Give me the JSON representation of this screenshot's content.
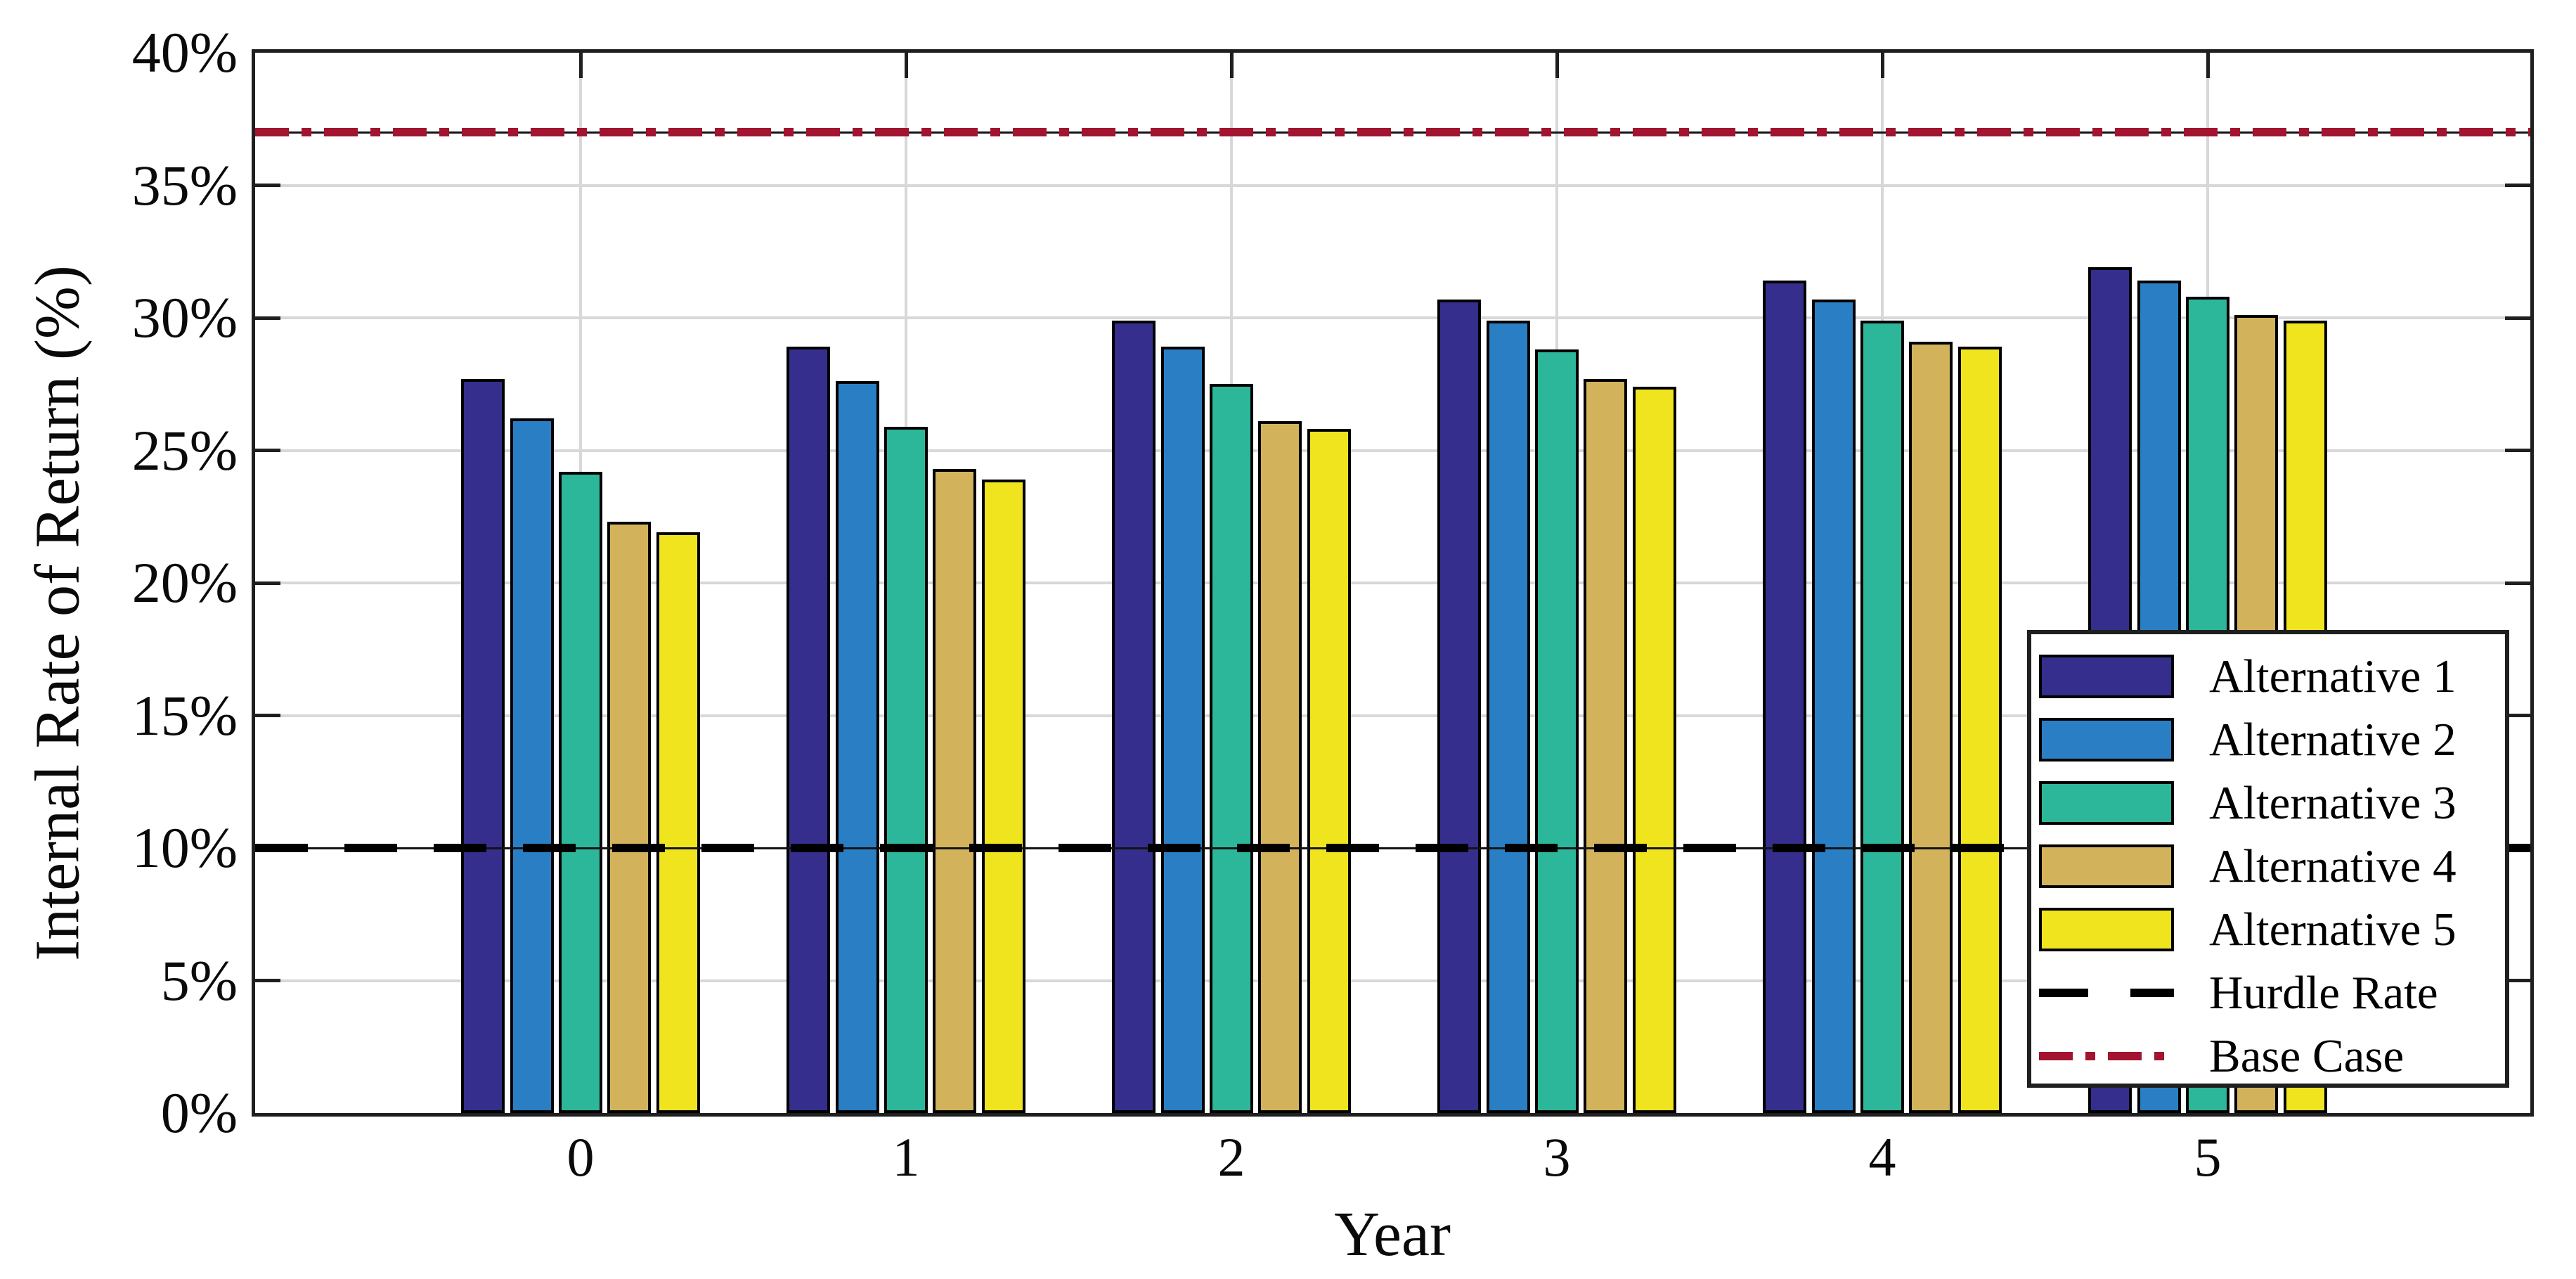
{
  "chart_data": {
    "type": "bar",
    "title": "",
    "xlabel": "Year",
    "ylabel": "Internal Rate of Return (%)",
    "categories": [
      "0",
      "1",
      "2",
      "3",
      "4",
      "5"
    ],
    "series": [
      {
        "name": "Alternative 1",
        "color": "#352E8C",
        "values": [
          27.7,
          28.9,
          29.9,
          30.7,
          31.4,
          31.9
        ]
      },
      {
        "name": "Alternative 2",
        "color": "#2A7FC4",
        "values": [
          26.2,
          27.6,
          28.9,
          29.9,
          30.7,
          31.4
        ]
      },
      {
        "name": "Alternative 3",
        "color": "#2DB79A",
        "values": [
          24.2,
          25.9,
          27.5,
          28.8,
          29.9,
          30.8
        ]
      },
      {
        "name": "Alternative 4",
        "color": "#D2B35C",
        "values": [
          22.3,
          24.3,
          26.1,
          27.7,
          29.1,
          30.1
        ]
      },
      {
        "name": "Alternative 5",
        "color": "#F0E41F",
        "values": [
          21.9,
          23.9,
          25.8,
          27.4,
          28.9,
          29.9
        ]
      }
    ],
    "reference_lines": [
      {
        "name": "Hurdle Rate",
        "value": 10,
        "style": "dashed",
        "color": "#000000"
      },
      {
        "name": "Base Case",
        "value": 37,
        "style": "dash-dot",
        "color": "#A2142F"
      }
    ],
    "ylim": [
      0,
      40
    ],
    "ytick_step": 5,
    "ytick_labels": [
      "0%",
      "5%",
      "10%",
      "15%",
      "20%",
      "25%",
      "30%",
      "35%",
      "40%"
    ],
    "grid": true,
    "legend_position": "lower right",
    "legend_entries": [
      "Alternative 1",
      "Alternative 2",
      "Alternative 3",
      "Alternative 4",
      "Alternative 5",
      "Hurdle Rate",
      "Base Case"
    ]
  },
  "colors": {
    "axis": "#1F1F1F",
    "gridline": "#D8D8D8",
    "bar_edge": "#000000",
    "background": "#FFFFFF",
    "base_case_red": "#A2142F",
    "hurdle_black": "#000000"
  }
}
